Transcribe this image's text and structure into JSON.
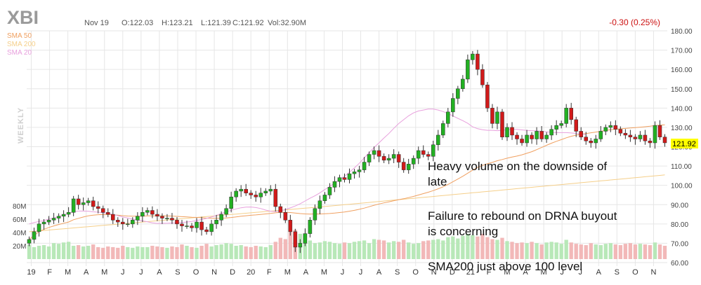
{
  "header": {
    "ticker": "XBI",
    "date": "Nov 19",
    "open": "O:122.03",
    "high": "H:123.21",
    "low": "L:121.39",
    "close": "C:121.92",
    "volume": "Vol:32.90M",
    "change": "-0.30 (0.25%)",
    "last_price_label": "121.92"
  },
  "legend": [
    {
      "label": "SMA 50",
      "color": "#f0a060"
    },
    {
      "label": "SMA 200",
      "color": "#f5cf8a"
    },
    {
      "label": "SMA 20",
      "color": "#e8a0dd"
    }
  ],
  "period_label": "WEEKLY",
  "annotations": [
    {
      "lines": [
        "Heavy volume on the downside of",
        "late"
      ]
    },
    {
      "lines": [
        "Failure to rebound on DRNA buyout",
        "is concerning"
      ]
    },
    {
      "lines": [
        "SMA200 just above 100 level"
      ]
    }
  ],
  "colors": {
    "up": "#22b022",
    "down": "#d11a1a",
    "vol_up": "#b8e8b8",
    "vol_down": "#f2b8b8",
    "grid": "#e6e6e6"
  },
  "chart_data": {
    "type": "candlestick",
    "y_ticks": [
      "180.00",
      "170.00",
      "160.00",
      "150.00",
      "140.00",
      "130.00",
      "120.00",
      "110.00",
      "100.00",
      "90.00",
      "80.00",
      "70.00",
      "60.00"
    ],
    "ylim": [
      57,
      182
    ],
    "volume_ticks": [
      "80M",
      "60M",
      "40M",
      "20M"
    ],
    "x_labels": [
      "19",
      "F",
      "M",
      "A",
      "M",
      "J",
      "J",
      "A",
      "S",
      "O",
      "N",
      "D",
      "20",
      "F",
      "M",
      "A",
      "M",
      "J",
      "J",
      "A",
      "S",
      "O",
      "N",
      "D",
      "21",
      "F",
      "M",
      "A",
      "M",
      "J",
      "J",
      "A",
      "S",
      "O",
      "N"
    ],
    "closes": [
      72,
      76,
      80,
      81,
      82,
      83,
      84,
      85,
      86,
      93,
      90,
      91,
      92,
      89,
      88,
      86,
      85,
      82,
      81,
      80,
      80,
      82,
      84,
      86,
      87,
      85,
      84,
      83,
      83,
      82,
      80,
      79,
      79,
      78,
      81,
      77,
      76,
      80,
      82,
      85,
      88,
      94,
      97,
      98,
      96,
      95,
      94,
      96,
      97,
      98,
      89,
      86,
      82,
      76,
      68,
      70,
      75,
      82,
      88,
      92,
      95,
      99,
      102,
      104,
      103,
      106,
      107,
      108,
      112,
      116,
      118,
      115,
      113,
      114,
      116,
      112,
      108,
      111,
      114,
      118,
      116,
      115,
      121,
      126,
      132,
      138,
      145,
      150,
      155,
      165,
      168,
      160,
      152,
      140,
      132,
      138,
      125,
      130,
      126,
      124,
      122,
      126,
      124,
      128,
      124,
      126,
      129,
      131,
      132,
      140,
      134,
      128,
      125,
      123,
      122,
      124,
      128,
      130,
      131,
      129,
      127,
      126,
      125,
      124,
      126,
      123,
      122,
      131,
      125,
      122
    ],
    "volumes": [
      22,
      18,
      20,
      21,
      19,
      24,
      23,
      25,
      26,
      20,
      21,
      19,
      20,
      22,
      18,
      17,
      19,
      18,
      17,
      20,
      18,
      17,
      19,
      18,
      18,
      20,
      19,
      18,
      17,
      19,
      18,
      22,
      20,
      18,
      17,
      20,
      23,
      19,
      21,
      22,
      24,
      23,
      20,
      21,
      19,
      18,
      20,
      19,
      18,
      21,
      26,
      32,
      30,
      42,
      44,
      38,
      30,
      28,
      24,
      25,
      27,
      26,
      24,
      23,
      25,
      24,
      26,
      27,
      28,
      24,
      30,
      29,
      28,
      25,
      27,
      26,
      29,
      25,
      23,
      24,
      27,
      28,
      29,
      30,
      28,
      33,
      34,
      31,
      35,
      38,
      36,
      34,
      38,
      33,
      30,
      29,
      32,
      27,
      26,
      24,
      25,
      24,
      26,
      24,
      22,
      25,
      26,
      25,
      23,
      29,
      25,
      23,
      22,
      21,
      24,
      22,
      21,
      23,
      24,
      22,
      21,
      23,
      24,
      22,
      23,
      22,
      21,
      25,
      22,
      20
    ],
    "sma20": [
      80.0,
      80.7,
      81.3,
      81.8,
      82.5,
      83.1,
      83.9,
      84.7,
      85.5,
      86.3,
      86.7,
      86.7,
      86.6,
      86.3,
      86.1,
      85.8,
      85.4,
      84.9,
      84.3,
      83.6,
      83.1,
      82.5,
      82.0,
      81.6,
      81.1,
      80.6,
      80.3,
      80.3,
      80.4,
      80.5,
      80.6,
      80.8,
      81.0,
      81.3,
      81.8,
      82.3,
      82.9,
      83.6,
      84.4,
      85.4,
      86.2,
      87.1,
      87.8,
      88.4,
      88.7,
      88.8,
      88.5,
      88.0,
      87.2,
      86.6,
      86.4,
      86.7,
      87.5,
      88.3,
      89.3,
      90.5,
      91.9,
      93.3,
      94.6,
      96.1,
      97.8,
      99.4,
      101.2,
      103.0,
      104.7,
      106.8,
      109.0,
      111.4,
      114.2,
      117.0,
      119.6,
      122.0,
      124.5,
      126.8,
      129.5,
      132.0,
      134.0,
      136.0,
      137.5,
      138.5,
      139.0,
      139.5,
      139.5,
      139.0,
      138.2,
      137.2,
      135.9,
      134.7,
      133.5,
      132.1,
      130.3,
      129.3,
      128.8,
      128.5,
      128.5,
      128.3,
      128.5,
      128.8,
      129.0,
      129.0,
      128.7,
      128.4,
      128.3,
      128.2,
      128.0,
      127.7,
      127.4,
      127.3,
      127.3,
      127.3,
      127.1,
      126.9,
      126.6,
      126.3
    ]
  }
}
